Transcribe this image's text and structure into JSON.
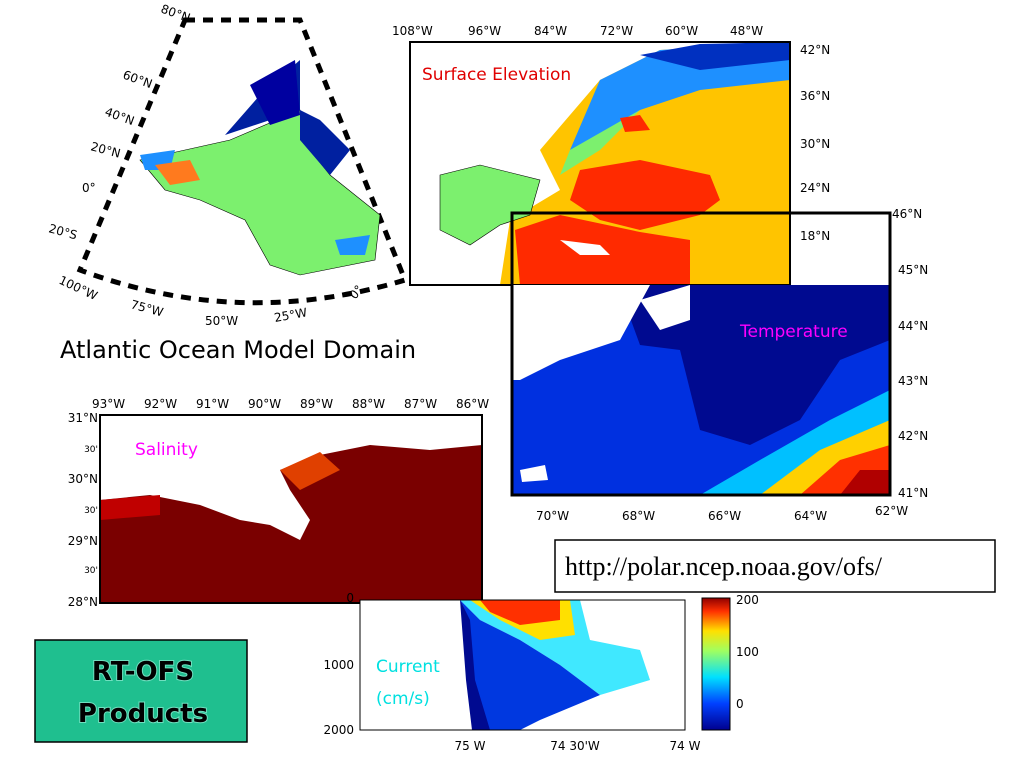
{
  "domain_map": {
    "lat_labels": [
      "80°N",
      "60°N",
      "40°N",
      "20°N",
      "0°",
      "20°S"
    ],
    "lon_labels": [
      "100°W",
      "75°W",
      "50°W",
      "25°W",
      "0°"
    ],
    "caption": "Atlantic Ocean Model Domain"
  },
  "surface_elevation": {
    "title": "Surface Elevation",
    "top_labels": [
      "108°W",
      "96°W",
      "84°W",
      "72°W",
      "60°W",
      "48°W"
    ],
    "right_labels": [
      "42°N",
      "36°N",
      "30°N",
      "24°N",
      "18°N"
    ]
  },
  "temperature": {
    "title": "Temperature",
    "right_labels": [
      "46°N",
      "45°N",
      "44°N",
      "43°N",
      "42°N",
      "41°N"
    ],
    "bottom_labels": [
      "70°W",
      "68°W",
      "66°W",
      "64°W",
      "62°W"
    ]
  },
  "salinity": {
    "title": "Salinity",
    "top_labels": [
      "93°W",
      "92°W",
      "91°W",
      "90°W",
      "89°W",
      "88°W",
      "87°W",
      "86°W"
    ],
    "left_labels": [
      "31°N",
      "30'",
      "30°N",
      "30'",
      "29°N",
      "30'",
      "28°N"
    ]
  },
  "url": "http://polar.ncep.noaa.gov/ofs/",
  "current": {
    "title": "Current",
    "units": "(cm/s)",
    "y_labels": [
      "0",
      "1000",
      "2000"
    ],
    "x_labels": [
      "75 W",
      "74 30'W",
      "74 W"
    ],
    "colorbar_labels": [
      "200",
      "100",
      "0"
    ]
  },
  "badge": {
    "lines": [
      "RT-OFS",
      "Products"
    ]
  }
}
